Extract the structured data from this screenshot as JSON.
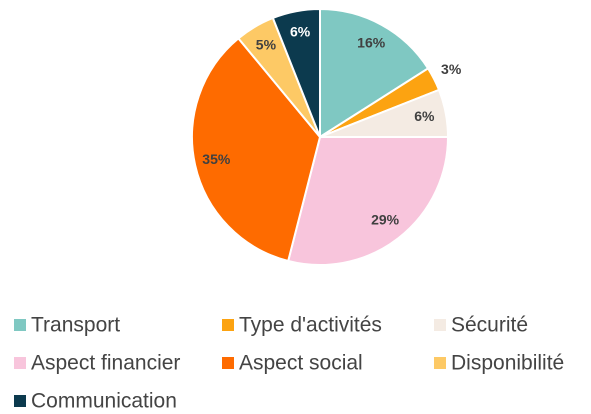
{
  "chart_data": {
    "type": "pie",
    "categories": [
      "Transport",
      "Type d'activités",
      "Sécurité",
      "Aspect financier",
      "Aspect social",
      "Disponibilité",
      "Communication"
    ],
    "values": [
      16,
      3,
      6,
      29,
      35,
      5,
      6
    ],
    "value_labels": [
      "16%",
      "3%",
      "6%",
      "29%",
      "35%",
      "5%",
      "6%"
    ],
    "colors": [
      "#7fc8c2",
      "#fca311",
      "#f4ebe3",
      "#f8c5dc",
      "#fe6b00",
      "#fdc965",
      "#0c3a4e"
    ],
    "legend": "bottom"
  }
}
